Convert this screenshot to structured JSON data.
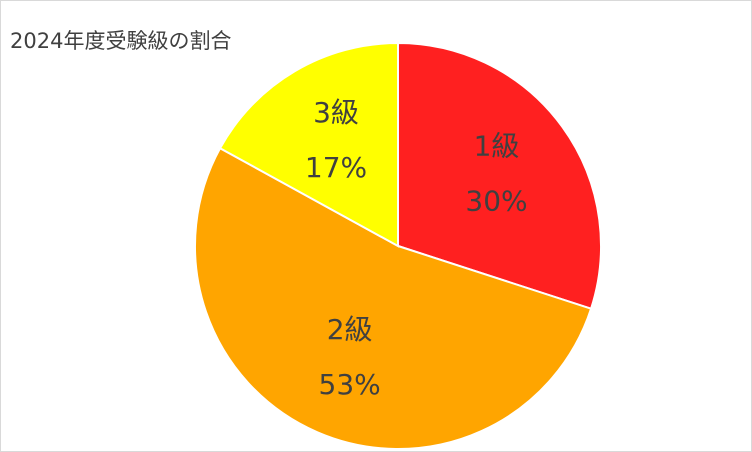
{
  "chart_data": {
    "type": "pie",
    "title": "2024年度受験級の割合",
    "categories": [
      "1級",
      "2級",
      "3級"
    ],
    "values": [
      30,
      53,
      17
    ],
    "value_labels": [
      "30%",
      "53%",
      "17%"
    ],
    "colors": [
      "#ff2020",
      "#ffa500",
      "#ffff00"
    ]
  }
}
